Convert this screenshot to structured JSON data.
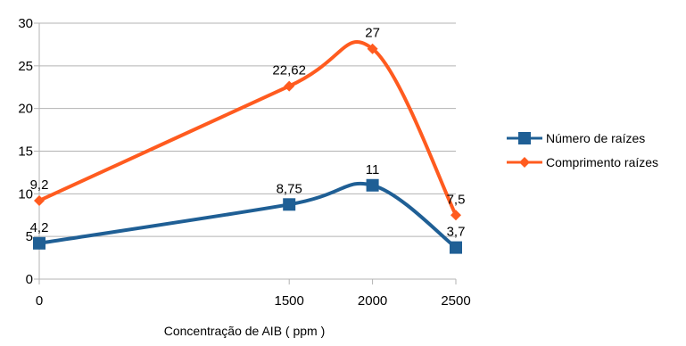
{
  "chart_data": {
    "type": "line",
    "title": "",
    "xlabel": "Concentração de AIB ( ppm )",
    "ylabel": "",
    "categories": [
      "0",
      "1500",
      "2000",
      "2500"
    ],
    "ylim": [
      0,
      30
    ],
    "yticks": [
      0,
      5,
      10,
      15,
      20,
      25,
      30
    ],
    "smooth": true,
    "grid": {
      "horizontal": true,
      "vertical": false
    },
    "legend_position": "right",
    "series": [
      {
        "name": "Número de raízes",
        "values": [
          4.2,
          8.75,
          11,
          3.7
        ],
        "labels": [
          "4,2",
          "8,75",
          "11",
          "3,7"
        ],
        "color": "#1f5f95",
        "marker": "square"
      },
      {
        "name": "Comprimento raízes",
        "values": [
          9.2,
          22.62,
          27,
          7.5
        ],
        "labels": [
          "9,2",
          "22,62",
          "27",
          "7,5"
        ],
        "color": "#ff5b1f",
        "marker": "diamond"
      }
    ]
  }
}
